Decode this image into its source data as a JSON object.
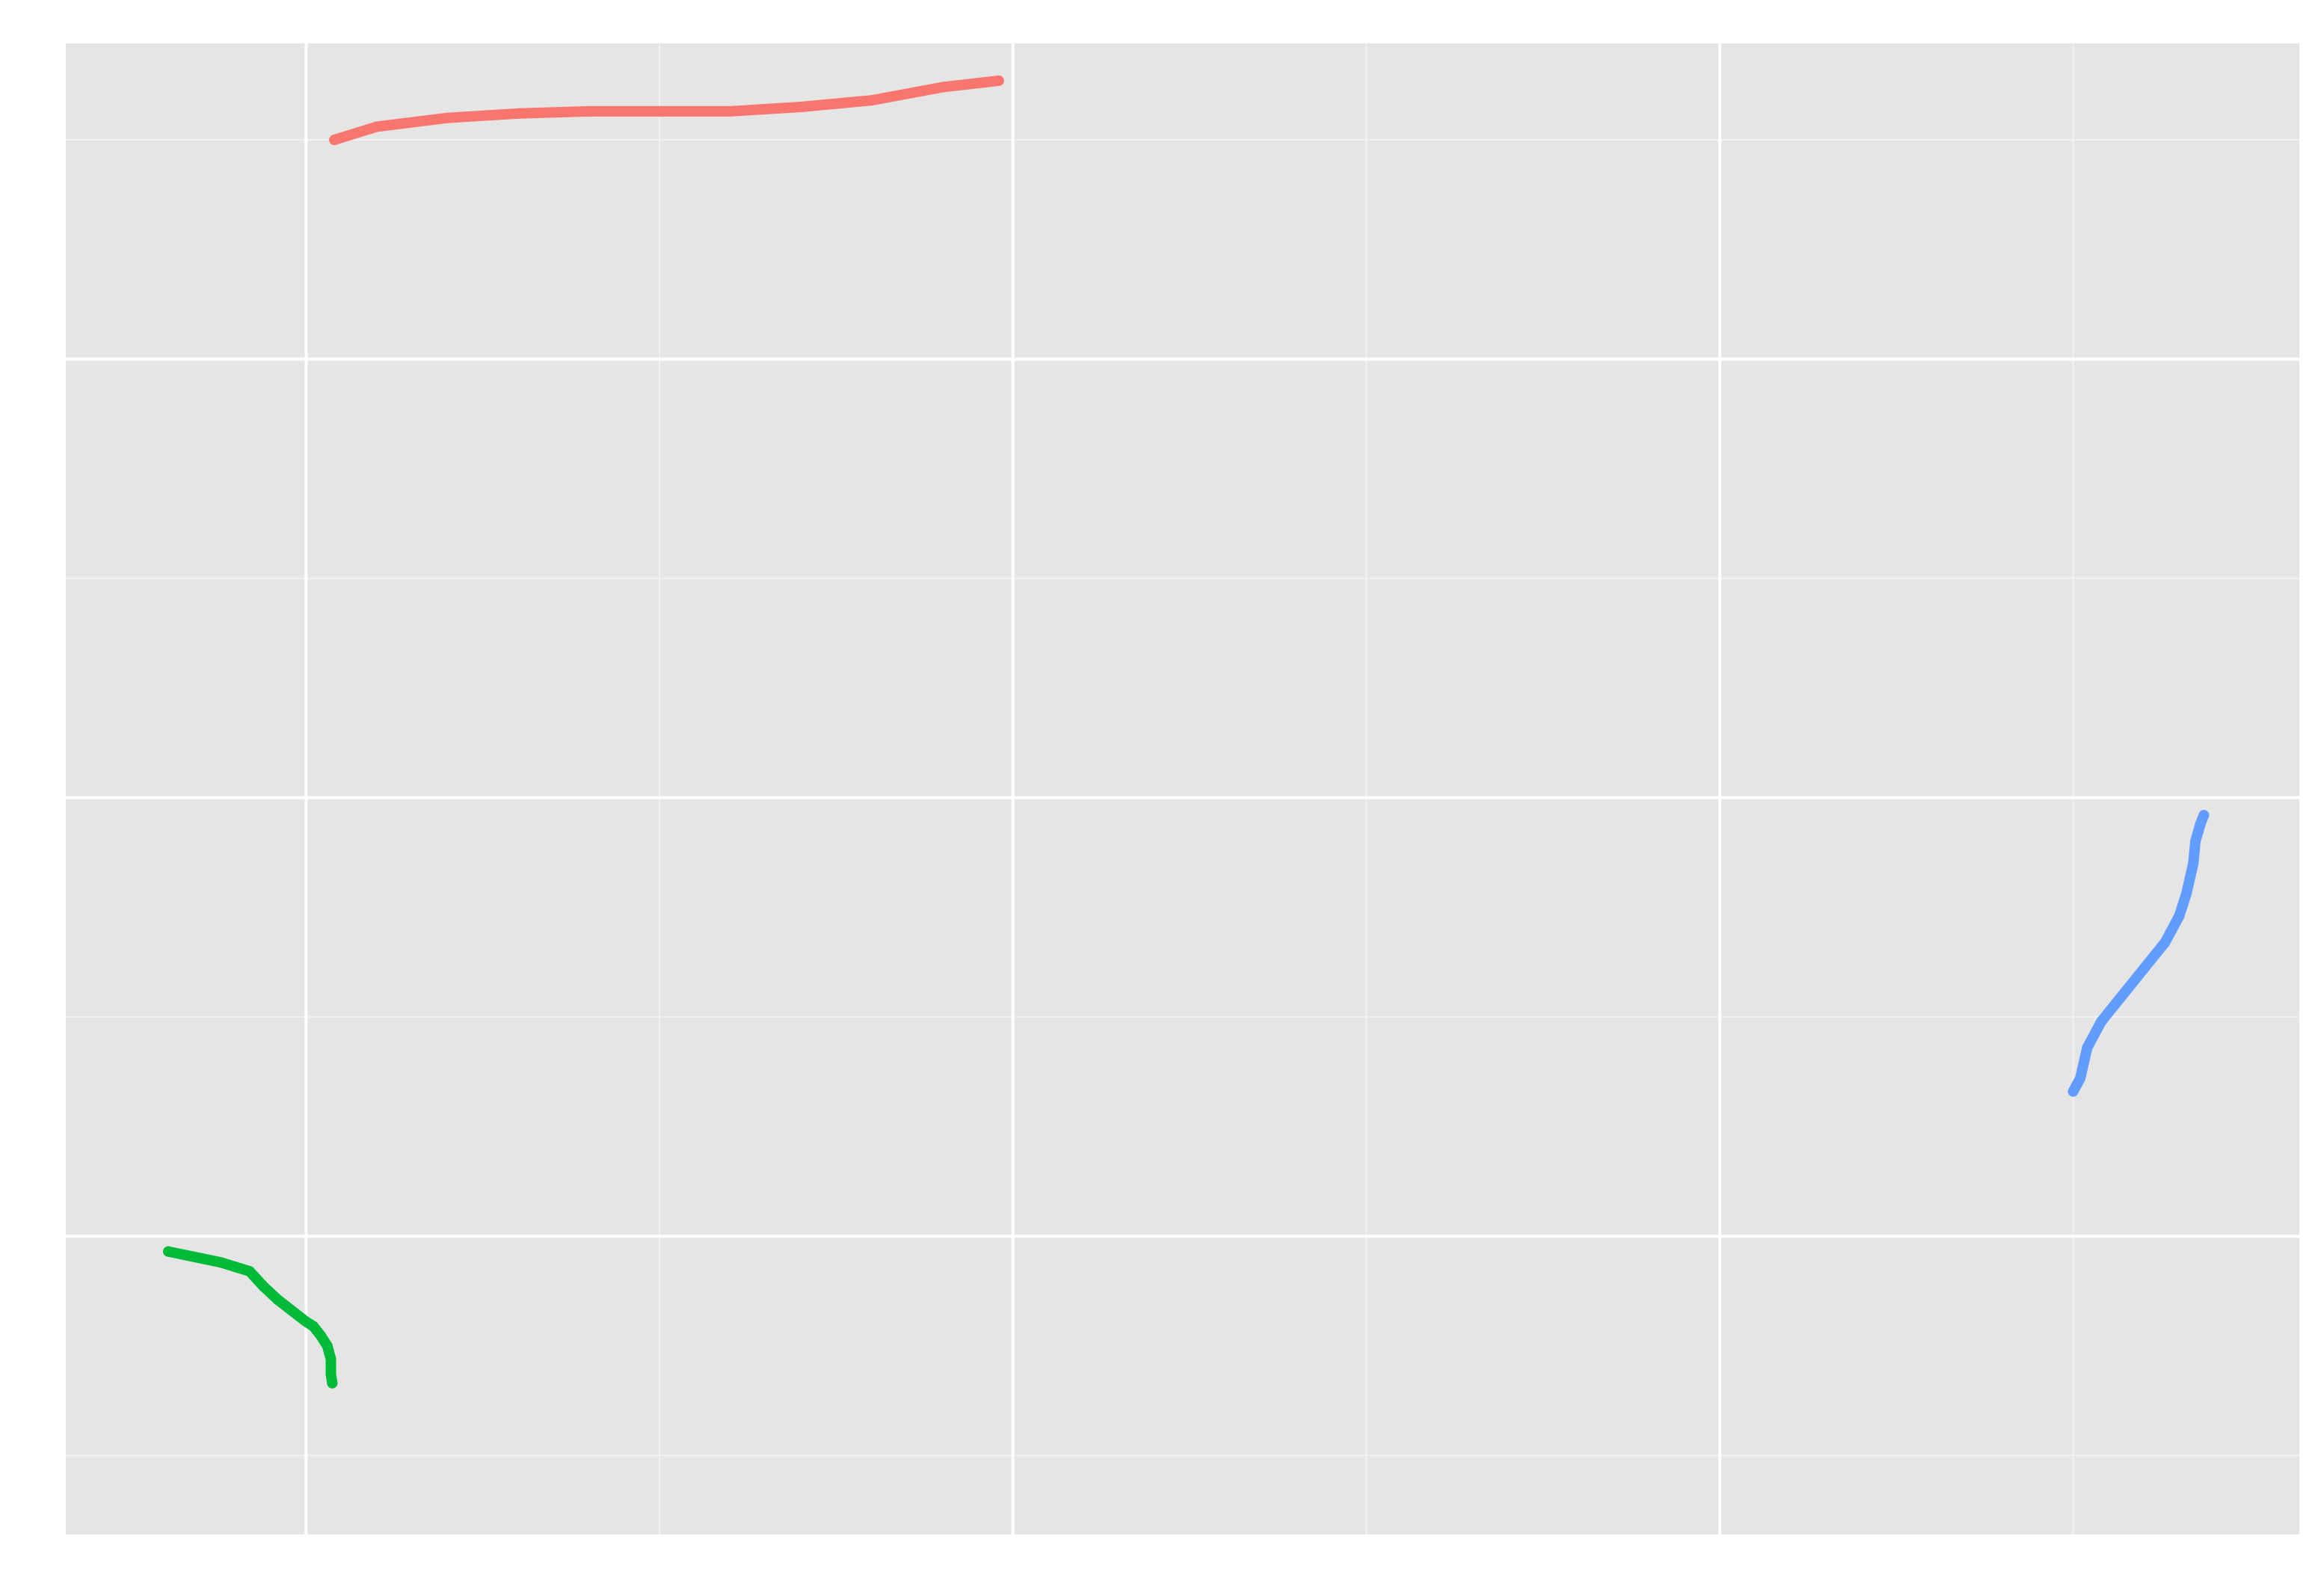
{
  "chart_data": {
    "type": "scatter",
    "title": "",
    "xlabel": "",
    "ylabel": "",
    "grid": true,
    "legend": "none",
    "xlim": [
      -0.34,
      2.82
    ],
    "ylim": [
      -0.18,
      3.22
    ],
    "x_major_ticks": [
      0,
      1,
      2
    ],
    "x_minor_ticks": [
      0.5,
      1.5,
      2.5
    ],
    "y_major_ticks": [
      0.5,
      1.5,
      2.5
    ],
    "y_minor_ticks": [
      0,
      1,
      2,
      3
    ],
    "colors": {
      "panel": "#e5e5e5",
      "grid_major": "#ffffff",
      "grid_minor": "#f1f1f1",
      "background": "#ffffff"
    },
    "series": [
      {
        "color": "#F8766D",
        "points": [
          [
            0.04,
            3.0
          ],
          [
            0.1,
            3.03
          ],
          [
            0.2,
            3.05
          ],
          [
            0.3,
            3.06
          ],
          [
            0.4,
            3.065
          ],
          [
            0.5,
            3.065
          ],
          [
            0.6,
            3.065
          ],
          [
            0.7,
            3.075
          ],
          [
            0.8,
            3.09
          ],
          [
            0.9,
            3.12
          ],
          [
            0.98,
            3.135
          ]
        ]
      },
      {
        "color": "#00BA38",
        "points": [
          [
            -0.195,
            0.465
          ],
          [
            -0.12,
            0.44
          ],
          [
            -0.1,
            0.43
          ],
          [
            -0.08,
            0.42
          ],
          [
            -0.06,
            0.385
          ],
          [
            -0.04,
            0.355
          ],
          [
            -0.02,
            0.33
          ],
          [
            0.0,
            0.305
          ],
          [
            0.01,
            0.295
          ],
          [
            0.02,
            0.275
          ],
          [
            0.03,
            0.25
          ],
          [
            0.035,
            0.22
          ],
          [
            0.035,
            0.185
          ],
          [
            0.037,
            0.165
          ]
        ]
      },
      {
        "color": "#619CFF",
        "points": [
          [
            2.5,
            0.83
          ],
          [
            2.51,
            0.86
          ],
          [
            2.52,
            0.93
          ],
          [
            2.54,
            0.99
          ],
          [
            2.57,
            1.05
          ],
          [
            2.6,
            1.11
          ],
          [
            2.63,
            1.17
          ],
          [
            2.65,
            1.23
          ],
          [
            2.66,
            1.28
          ],
          [
            2.67,
            1.35
          ],
          [
            2.673,
            1.4
          ],
          [
            2.68,
            1.44
          ],
          [
            2.685,
            1.46
          ]
        ]
      }
    ]
  }
}
